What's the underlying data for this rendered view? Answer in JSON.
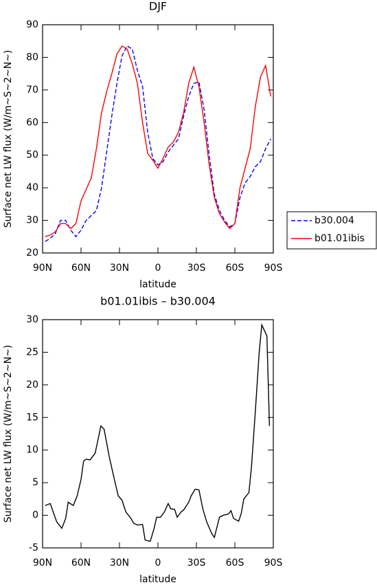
{
  "chart_data": [
    {
      "type": "line",
      "title": "DJF",
      "x_label": "latitude",
      "y_label": "Surface net LW flux (W/m~S~2~N~)",
      "x": [
        88,
        84,
        80,
        76,
        72,
        68,
        64,
        60,
        56,
        52,
        48,
        44,
        40,
        36,
        32,
        28,
        24,
        20,
        16,
        12,
        8,
        4,
        0,
        -4,
        -8,
        -12,
        -16,
        -20,
        -24,
        -28,
        -32,
        -36,
        -40,
        -44,
        -48,
        -52,
        -56,
        -60,
        -64,
        -68,
        -72,
        -76,
        -80,
        -84,
        -88
      ],
      "series": [
        {
          "name": "b30.004",
          "color": "#0000ff",
          "line_style": "dashed",
          "values": [
            23.5,
            24.5,
            26,
            30,
            30,
            27,
            25,
            27,
            30,
            31.5,
            33,
            40,
            51,
            62,
            72,
            80.5,
            83.5,
            82.5,
            76,
            71,
            57,
            49,
            47,
            48,
            51,
            53,
            55,
            62,
            68,
            72,
            72.5,
            64,
            50,
            38,
            33,
            30,
            28,
            29,
            37,
            41.5,
            43.5,
            46.5,
            48,
            52,
            55
          ]
        },
        {
          "name": "b01.01ibis",
          "color": "#ff0000",
          "line_style": "solid",
          "values": [
            25,
            25.5,
            26.5,
            29,
            29,
            27.5,
            29,
            36,
            39.5,
            43,
            52,
            63,
            69.5,
            75,
            81,
            83.5,
            82.5,
            78,
            72,
            60,
            50.5,
            48.5,
            46,
            49,
            52.5,
            54,
            57,
            63,
            72,
            77,
            71,
            60,
            47,
            37,
            32,
            29.5,
            27.5,
            29,
            40,
            46,
            52,
            65,
            74,
            77.5,
            68
          ]
        }
      ],
      "xlim": [
        90,
        -90
      ],
      "xticks": [
        {
          "value": 90,
          "label": "90N"
        },
        {
          "value": 60,
          "label": "60N"
        },
        {
          "value": 30,
          "label": "30N"
        },
        0,
        {
          "value": -30,
          "label": "30S"
        },
        {
          "value": -60,
          "label": "60S"
        },
        {
          "value": -90,
          "label": "90S"
        }
      ],
      "ylim": [
        20,
        90
      ],
      "yticks": [
        20,
        30,
        40,
        50,
        60,
        70,
        80,
        90
      ],
      "legend": "right"
    },
    {
      "type": "line",
      "title": "b01.01ibis – b30.004",
      "x_label": "latitude",
      "y_label": "Surface net LW flux (W/m~S~2~N~)",
      "x": [
        88,
        84,
        79,
        75,
        72,
        70,
        66,
        63,
        60,
        58,
        56,
        53,
        49,
        44.5,
        42,
        38,
        34,
        31,
        28,
        25,
        21,
        19,
        16,
        12,
        10,
        6,
        3,
        1,
        -2,
        -5,
        -8,
        -10,
        -13,
        -15,
        -18,
        -20,
        -24,
        -26,
        -29,
        -32,
        -35,
        -38,
        -42,
        -44,
        -48,
        -51,
        -55,
        -57,
        -59,
        -63,
        -65,
        -67,
        -71,
        -73,
        -76,
        -79,
        -81,
        -85,
        -87
      ],
      "values": [
        1.5,
        1.8,
        -1,
        -2,
        -0.5,
        2,
        1.5,
        3,
        5.5,
        8.3,
        8.6,
        8.5,
        9.5,
        13.7,
        13.2,
        9,
        5.5,
        3,
        2.3,
        0.5,
        -0.5,
        -1.2,
        -1.5,
        -1.4,
        -3.8,
        -4,
        -2,
        -0.3,
        -0.3,
        0.5,
        1.8,
        1,
        0.9,
        -0.3,
        0.5,
        0.8,
        2,
        3,
        4,
        3.9,
        1,
        -1,
        -2.8,
        -3.4,
        -0.3,
        0,
        0.2,
        0.7,
        -0.5,
        -0.9,
        0.3,
        2.5,
        3.5,
        7.5,
        16,
        25,
        29.2,
        27.5,
        13.7
      ],
      "color": "#000000",
      "xlim": [
        90,
        -90
      ],
      "xticks": [
        {
          "value": 90,
          "label": "90N"
        },
        {
          "value": 60,
          "label": "60N"
        },
        {
          "value": 30,
          "label": "30N"
        },
        0,
        {
          "value": -30,
          "label": "30S"
        },
        {
          "value": -60,
          "label": "60S"
        },
        {
          "value": -90,
          "label": "90S"
        }
      ],
      "ylim": [
        -5,
        30
      ],
      "yticks": [
        -5,
        0,
        5,
        10,
        15,
        20,
        25,
        30
      ]
    }
  ]
}
